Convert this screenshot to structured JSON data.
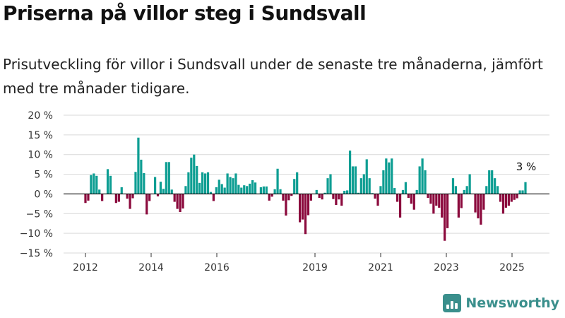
{
  "header": {
    "title": "Priserna på villor steg i Sundsvall",
    "subtitle": "Prisutveckling för villor i Sundsvall under de senaste tre månaderna, jämfört med tre månader tidigare."
  },
  "brand": {
    "name": "Newsworthy",
    "icon": "bar-chart-logo-icon",
    "color": "#3a8f8c"
  },
  "chart_data": {
    "type": "bar",
    "x_tick_labels": [
      "2012",
      "2014",
      "2016",
      "2019",
      "2021",
      "2023",
      "2025"
    ],
    "y_tick_labels": [
      "20 %",
      "15 %",
      "10 %",
      "5 %",
      "0 %",
      "−5 %",
      "−10 %",
      "−15 %"
    ],
    "ylim": [
      -15,
      20
    ],
    "grid": true,
    "annotation": "3 %",
    "colors": {
      "positive": "#0e9e93",
      "negative": "#8b0a3d"
    },
    "values": [
      -2.3,
      -1.7,
      4.8,
      5.2,
      4.6,
      1.1,
      -1.8,
      0,
      6.3,
      4.6,
      0,
      -2.3,
      -2,
      1.7,
      0,
      -1.2,
      -3.8,
      -1.1,
      5.6,
      14.3,
      8.7,
      5.3,
      -5.2,
      -1.8,
      0,
      4.3,
      -0.6,
      3.1,
      1.3,
      8.1,
      8.1,
      1.1,
      -2,
      -3.8,
      -4.6,
      -3.7,
      2,
      5.5,
      9.2,
      10,
      7.1,
      2.8,
      5.5,
      5.2,
      5.5,
      0.5,
      -1.8,
      1.7,
      3.6,
      2.5,
      1.6,
      5.2,
      4.3,
      4,
      5.2,
      2.3,
      1.6,
      2.2,
      2,
      2.6,
      3.5,
      2.9,
      0,
      1.7,
      1.9,
      1.9,
      -1.7,
      -0.7,
      1.2,
      6.4,
      1.2,
      -1.7,
      -5.5,
      -1.6,
      -0.5,
      3.8,
      5.5,
      -7.2,
      -6.5,
      -10.2,
      -5.4,
      -1.7,
      0,
      1,
      -1,
      -1.4,
      0.3,
      4,
      5,
      -1.3,
      -2.8,
      -1.4,
      -3,
      0.8,
      0.9,
      11,
      7,
      7,
      0.3,
      4,
      5,
      8.8,
      4,
      0.2,
      -1.2,
      -3,
      2,
      6,
      9,
      8,
      9,
      1.5,
      -2,
      -6,
      1,
      3,
      -1,
      -2.5,
      -4,
      1,
      7,
      9,
      6,
      -1,
      -2.5,
      -5,
      -3,
      -3.5,
      -6,
      -11.9,
      -8.7,
      0,
      4,
      2,
      -6,
      -3.6,
      1,
      2,
      5,
      0,
      -4.7,
      -6.2,
      -7.8,
      -4,
      2,
      6,
      6,
      4,
      2,
      -2,
      -5,
      -3.5,
      -3,
      -2,
      -1.5,
      -1.1,
      0.9,
      0.9,
      3
    ]
  }
}
